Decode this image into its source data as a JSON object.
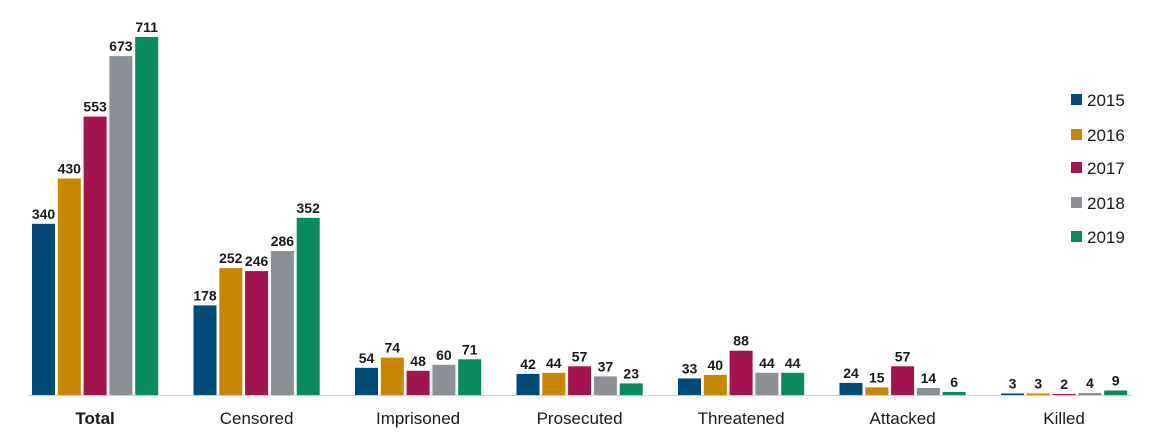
{
  "chart_data": {
    "type": "bar",
    "title": "",
    "xlabel": "",
    "ylabel": "",
    "categories": [
      "Total",
      "Censored",
      "Imprisoned",
      "Prosecuted",
      "Threatened",
      "Attacked",
      "Killed"
    ],
    "bold_category": "Total",
    "series": [
      {
        "name": "2015",
        "color": "#004a7a",
        "values": [
          340,
          178,
          54,
          42,
          33,
          24,
          3
        ]
      },
      {
        "name": "2016",
        "color": "#c78700",
        "values": [
          430,
          252,
          74,
          44,
          40,
          15,
          3
        ]
      },
      {
        "name": "2017",
        "color": "#a3144e",
        "values": [
          553,
          246,
          48,
          57,
          88,
          57,
          2
        ]
      },
      {
        "name": "2018",
        "color": "#8b9097",
        "values": [
          673,
          286,
          60,
          37,
          44,
          14,
          4
        ]
      },
      {
        "name": "2019",
        "color": "#0a8a5f",
        "values": [
          711,
          352,
          71,
          23,
          44,
          6,
          9
        ]
      }
    ],
    "ylim": [
      0,
      711
    ],
    "grid": false,
    "legend": "right",
    "data_labels": true
  }
}
